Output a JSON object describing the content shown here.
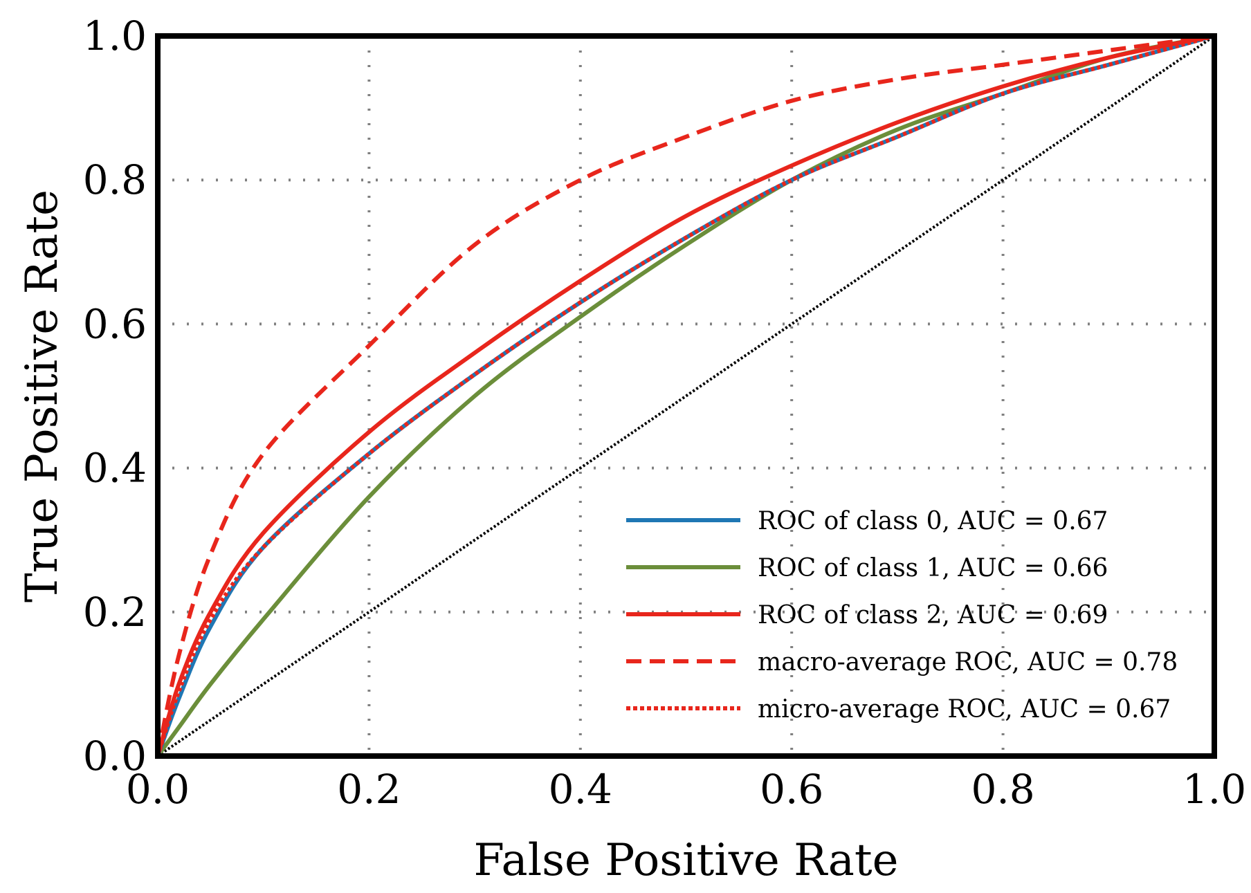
{
  "chart_data": {
    "type": "line",
    "title": "",
    "xlabel": "False Positive Rate",
    "ylabel": "True Positive Rate",
    "xlim": [
      0.0,
      1.0
    ],
    "ylim": [
      0.0,
      1.0
    ],
    "xticks": [
      "0.0",
      "0.2",
      "0.4",
      "0.6",
      "0.8",
      "1.0"
    ],
    "yticks": [
      "0.0",
      "0.2",
      "0.4",
      "0.6",
      "0.8",
      "1.0"
    ],
    "grid": true,
    "legend_position": "bottom-right",
    "series": [
      {
        "name": "ROC of class 0, AUC = 0.67",
        "color": "#1f77b4",
        "style": "solid",
        "x": [
          0.0,
          0.02,
          0.05,
          0.1,
          0.2,
          0.3,
          0.4,
          0.5,
          0.6,
          0.7,
          0.8,
          0.9,
          1.0
        ],
        "y": [
          0.0,
          0.08,
          0.18,
          0.29,
          0.42,
          0.53,
          0.63,
          0.72,
          0.8,
          0.86,
          0.92,
          0.96,
          1.0
        ]
      },
      {
        "name": "ROC of class 1, AUC = 0.66",
        "color": "#6b8e3a",
        "style": "solid",
        "x": [
          0.0,
          0.02,
          0.05,
          0.1,
          0.2,
          0.3,
          0.4,
          0.5,
          0.6,
          0.7,
          0.8,
          0.9,
          1.0
        ],
        "y": [
          0.0,
          0.04,
          0.1,
          0.19,
          0.36,
          0.5,
          0.61,
          0.71,
          0.8,
          0.87,
          0.92,
          0.97,
          1.0
        ]
      },
      {
        "name": "ROC of class 2, AUC = 0.69",
        "color": "#e8261c",
        "style": "solid",
        "x": [
          0.0,
          0.02,
          0.05,
          0.1,
          0.2,
          0.3,
          0.4,
          0.5,
          0.6,
          0.7,
          0.8,
          0.9,
          1.0
        ],
        "y": [
          0.0,
          0.1,
          0.2,
          0.31,
          0.45,
          0.56,
          0.66,
          0.75,
          0.82,
          0.88,
          0.93,
          0.97,
          1.0
        ]
      },
      {
        "name": "macro-average ROC, AUC = 0.78",
        "color": "#e8261c",
        "style": "dashed",
        "x": [
          0.0,
          0.02,
          0.05,
          0.1,
          0.2,
          0.3,
          0.4,
          0.5,
          0.6,
          0.7,
          0.8,
          0.9,
          1.0
        ],
        "y": [
          0.0,
          0.14,
          0.28,
          0.42,
          0.57,
          0.71,
          0.8,
          0.86,
          0.91,
          0.94,
          0.96,
          0.98,
          1.0
        ]
      },
      {
        "name": "micro-average ROC, AUC = 0.67",
        "color": "#e8261c",
        "style": "dotted",
        "x": [
          0.0,
          0.02,
          0.05,
          0.1,
          0.2,
          0.3,
          0.4,
          0.5,
          0.6,
          0.7,
          0.8,
          0.9,
          1.0
        ],
        "y": [
          0.0,
          0.09,
          0.19,
          0.29,
          0.42,
          0.53,
          0.63,
          0.72,
          0.8,
          0.86,
          0.92,
          0.96,
          1.0
        ]
      }
    ],
    "reference_line": {
      "name": "chance",
      "color": "#000000",
      "style": "dotted",
      "x": [
        0.0,
        1.0
      ],
      "y": [
        0.0,
        1.0
      ]
    }
  }
}
